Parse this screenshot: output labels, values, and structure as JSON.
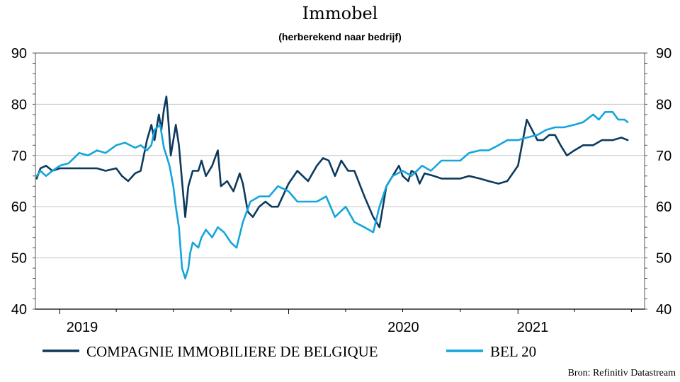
{
  "chart_data": {
    "type": "line",
    "title": "Immobel",
    "subtitle": "(herberekend naar bedrijf)",
    "source": "Bron: Refinitiv Datastream",
    "xlabel": "",
    "ylabel": "",
    "ylim": [
      40,
      90
    ],
    "y_ticks": [
      40,
      50,
      60,
      70,
      80,
      90
    ],
    "x_ticks": [
      "2019",
      "2020",
      "2021"
    ],
    "grid": true,
    "legend_position": "bottom",
    "series": [
      {
        "name": "COMPAGNIE IMMOBILIERE DE BELGIQUE",
        "color": "#0d3a5e",
        "x": [
          "2018-11-25",
          "2018-12-01",
          "2018-12-10",
          "2018-12-20",
          "2019-01-01",
          "2019-01-15",
          "2019-02-01",
          "2019-02-15",
          "2019-03-01",
          "2019-03-15",
          "2019-04-01",
          "2019-04-10",
          "2019-04-20",
          "2019-05-01",
          "2019-05-10",
          "2019-05-20",
          "2019-05-27",
          "2019-06-01",
          "2019-06-08",
          "2019-06-12",
          "2019-06-16",
          "2019-06-20",
          "2019-06-23",
          "2019-06-27",
          "2019-07-01",
          "2019-07-05",
          "2019-07-10",
          "2019-07-15",
          "2019-07-20",
          "2019-07-25",
          "2019-08-01",
          "2019-08-10",
          "2019-08-15",
          "2019-08-22",
          "2019-09-01",
          "2019-09-10",
          "2019-09-15",
          "2019-09-25",
          "2019-10-05",
          "2019-10-15",
          "2019-10-20",
          "2019-10-28",
          "2019-11-05",
          "2019-11-15",
          "2019-11-25",
          "2019-12-05",
          "2019-12-15",
          "2020-01-01",
          "2020-01-15",
          "2020-02-01",
          "2020-02-15",
          "2020-02-25",
          "2020-03-05",
          "2020-03-15",
          "2020-03-25",
          "2020-04-05",
          "2020-04-15",
          "2020-05-01",
          "2020-05-15",
          "2020-05-25",
          "2020-06-05",
          "2020-06-15",
          "2020-06-25",
          "2020-07-01",
          "2020-07-10",
          "2020-07-15",
          "2020-07-22",
          "2020-07-28",
          "2020-08-05",
          "2020-08-20",
          "2020-09-01",
          "2020-09-15",
          "2020-10-01",
          "2020-10-15",
          "2020-11-01",
          "2020-11-15",
          "2020-12-01",
          "2020-12-15",
          "2021-01-01",
          "2021-01-15",
          "2021-02-01",
          "2021-02-10",
          "2021-02-20",
          "2021-03-01",
          "2021-03-10",
          "2021-03-20",
          "2021-04-01",
          "2021-04-15",
          "2021-05-01",
          "2021-05-15",
          "2021-06-01",
          "2021-06-15",
          "2021-06-25"
        ],
        "values": [
          65.5,
          67.5,
          68,
          67,
          67.5,
          67.5,
          67.5,
          67.5,
          67.5,
          67,
          67.5,
          66,
          65,
          66.5,
          67,
          73,
          76,
          73,
          78,
          75,
          79,
          81.5,
          77,
          70,
          73,
          76,
          72,
          65,
          58,
          64,
          67,
          67,
          69,
          66,
          68,
          71,
          64,
          65,
          63,
          66.5,
          64.5,
          59,
          58,
          60,
          61,
          60,
          60,
          64.5,
          67,
          65,
          68,
          69.5,
          69,
          66,
          69,
          67,
          67,
          62,
          58,
          56,
          64,
          66,
          68,
          66,
          65,
          67,
          66.5,
          64.5,
          66.5,
          66,
          65.5,
          65.5,
          65.5,
          66,
          65.5,
          65,
          64.5,
          65,
          68,
          77,
          73,
          73,
          74,
          74,
          72,
          70,
          71,
          72,
          72,
          73,
          73,
          73.5,
          73
        ]
      },
      {
        "name": "BEL 20",
        "color": "#14a5dc",
        "x": [
          "2018-11-25",
          "2018-12-01",
          "2018-12-10",
          "2018-12-20",
          "2019-01-01",
          "2019-01-15",
          "2019-02-01",
          "2019-02-15",
          "2019-03-01",
          "2019-03-15",
          "2019-04-01",
          "2019-04-15",
          "2019-05-01",
          "2019-05-10",
          "2019-05-20",
          "2019-05-27",
          "2019-06-01",
          "2019-06-10",
          "2019-06-16",
          "2019-06-20",
          "2019-06-25",
          "2019-07-01",
          "2019-07-05",
          "2019-07-10",
          "2019-07-15",
          "2019-07-20",
          "2019-07-25",
          "2019-07-28",
          "2019-08-01",
          "2019-08-10",
          "2019-08-15",
          "2019-08-22",
          "2019-09-01",
          "2019-09-10",
          "2019-09-20",
          "2019-10-01",
          "2019-10-10",
          "2019-10-20",
          "2019-11-01",
          "2019-11-15",
          "2019-12-01",
          "2019-12-15",
          "2020-01-01",
          "2020-01-15",
          "2020-02-01",
          "2020-02-15",
          "2020-03-01",
          "2020-03-15",
          "2020-04-01",
          "2020-04-15",
          "2020-05-01",
          "2020-05-15",
          "2020-05-25",
          "2020-06-05",
          "2020-06-15",
          "2020-07-01",
          "2020-07-15",
          "2020-08-01",
          "2020-08-15",
          "2020-09-01",
          "2020-09-15",
          "2020-10-01",
          "2020-10-15",
          "2020-11-01",
          "2020-11-15",
          "2020-12-01",
          "2020-12-15",
          "2021-01-01",
          "2021-01-15",
          "2021-02-01",
          "2021-02-15",
          "2021-03-01",
          "2021-03-15",
          "2021-04-01",
          "2021-04-15",
          "2021-05-01",
          "2021-05-10",
          "2021-05-20",
          "2021-06-01",
          "2021-06-10",
          "2021-06-20",
          "2021-06-25"
        ],
        "values": [
          66,
          67,
          66,
          67,
          68,
          68.5,
          70.5,
          70,
          71,
          70.5,
          72,
          72.5,
          71.5,
          72,
          71,
          72,
          75,
          76,
          71.5,
          70,
          68,
          64,
          60,
          56,
          48,
          46,
          48,
          51,
          53,
          52,
          54,
          55.5,
          54,
          56,
          55,
          53,
          52,
          57,
          61,
          62,
          62,
          64,
          63,
          61,
          61,
          61,
          62,
          58,
          60,
          57,
          56,
          55,
          60,
          64,
          66,
          67,
          66,
          68,
          67,
          69,
          69,
          69,
          70.5,
          71,
          71,
          72,
          73,
          73,
          73.5,
          74,
          75,
          75.5,
          75.5,
          76,
          76.5,
          78,
          77,
          78.5,
          78.5,
          77,
          77,
          76.5
        ]
      }
    ]
  }
}
